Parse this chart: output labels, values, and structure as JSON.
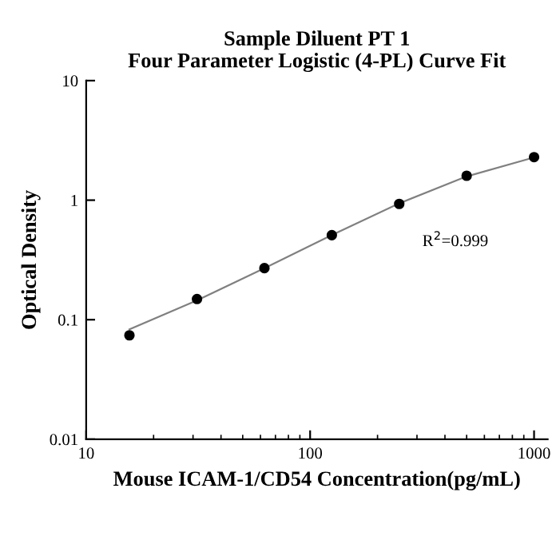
{
  "chart_data": {
    "type": "scatter",
    "title": "Sample Diluent PT 1\nFour Parameter Logistic (4-PL) Curve Fit",
    "xlabel": "Mouse ICAM-1/CD54 Concentration(pg/mL)",
    "ylabel": "Optical Density",
    "log": "xy",
    "xlim": [
      10,
      1150
    ],
    "ylim": [
      0.01,
      10
    ],
    "xticks": [
      10,
      100,
      1000
    ],
    "yticks": [
      0.01,
      0.1,
      1,
      10
    ],
    "grid": false,
    "legend": false,
    "marker": "circle",
    "series": [
      {
        "color": "#000000",
        "x": [
          15.6,
          31.25,
          62.5,
          125,
          250,
          500,
          1000
        ],
        "values": [
          0.074,
          0.149,
          0.27,
          0.51,
          0.93,
          1.6,
          2.29
        ]
      },
      {
        "type": "line",
        "color": "#808080",
        "marker": "none",
        "line_style": "solid",
        "x": [
          15.6,
          31.25,
          62.5,
          125,
          250,
          500,
          1000
        ],
        "values": [
          0.083,
          0.145,
          0.27,
          0.51,
          0.94,
          1.58,
          2.28
        ]
      }
    ],
    "annotations": [
      "R$^{2}$=0.999"
    ]
  }
}
